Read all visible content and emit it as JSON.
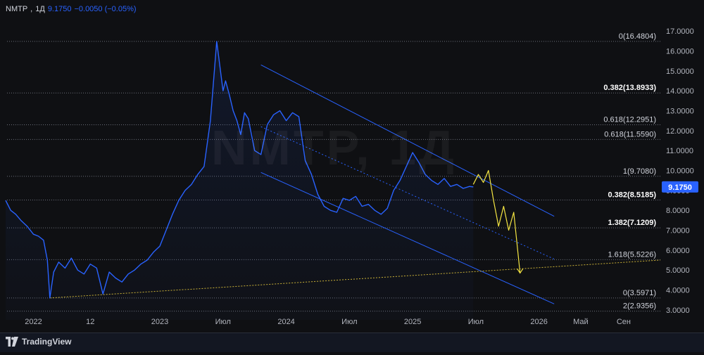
{
  "legend": {
    "symbol": "NMTP",
    "interval": "1Д",
    "price": "9.1750",
    "change": "−0.0050 (−0.05%)"
  },
  "watermark": "NMTP, 1Д",
  "brand": {
    "name": "TradingView",
    "icon": "tradingview-logo-icon"
  },
  "colors": {
    "background": "#0f1013",
    "price_line": "#2962ff",
    "channel": "#2962ff",
    "forecast": "#f5e642",
    "trendline": "#c9b037",
    "price_badge": "#2962ff"
  },
  "chart_data": {
    "type": "line",
    "title": "",
    "xlabel": "",
    "ylabel": "",
    "ylim": [
      2.5,
      17.5
    ],
    "y_ticks": [
      "3.0000",
      "4.0000",
      "5.0000",
      "6.0000",
      "7.0000",
      "8.0000",
      "9.0000",
      "10.0000",
      "11.0000",
      "12.0000",
      "13.0000",
      "14.0000",
      "15.0000",
      "16.0000",
      "17.0000"
    ],
    "x_ticks": [
      "2022",
      "12",
      "2023",
      "Июл",
      "2024",
      "Июл",
      "2025",
      "Июл",
      "2026",
      "Май",
      "Сен"
    ],
    "x_tick_positions": [
      2022.0,
      2022.45,
      2023.0,
      2023.5,
      2024.0,
      2024.5,
      2025.0,
      2025.5,
      2026.0,
      2026.33,
      2026.67
    ],
    "x_range": [
      2021.78,
      2026.96
    ],
    "last_price": 9.175,
    "last_price_label": "9.1750",
    "series": [
      {
        "x": [
          2021.78,
          2021.82,
          2021.86,
          2021.9,
          2021.95,
          2022.0,
          2022.04,
          2022.08,
          2022.11,
          2022.13,
          2022.16,
          2022.2,
          2022.25,
          2022.3,
          2022.35,
          2022.4,
          2022.45,
          2022.5,
          2022.55,
          2022.6,
          2022.65,
          2022.7,
          2022.75,
          2022.8,
          2022.85,
          2022.9,
          2022.95,
          2023.0,
          2023.05,
          2023.1,
          2023.15,
          2023.2,
          2023.25,
          2023.3,
          2023.35,
          2023.4,
          2023.45,
          2023.5,
          2023.52,
          2023.55,
          2023.58,
          2023.61,
          2023.64,
          2023.67,
          2023.7,
          2023.75,
          2023.8,
          2023.85,
          2023.9,
          2023.95,
          2024.0,
          2024.05,
          2024.1,
          2024.15,
          2024.2,
          2024.25,
          2024.3,
          2024.35,
          2024.4,
          2024.45,
          2024.5,
          2024.55,
          2024.6,
          2024.65,
          2024.7,
          2024.75,
          2024.8,
          2024.85,
          2024.9,
          2024.95,
          2025.0,
          2025.05,
          2025.1,
          2025.15,
          2025.2,
          2025.25,
          2025.3,
          2025.35,
          2025.4,
          2025.45,
          2025.48
        ],
        "y": [
          8.5,
          8.0,
          7.8,
          7.5,
          7.2,
          6.8,
          6.7,
          6.5,
          5.5,
          3.6,
          4.9,
          5.4,
          5.1,
          5.6,
          5.0,
          4.8,
          5.3,
          5.1,
          3.8,
          4.9,
          4.6,
          4.4,
          4.8,
          5.0,
          5.3,
          5.5,
          5.9,
          6.2,
          7.0,
          7.8,
          8.5,
          9.0,
          9.3,
          9.8,
          10.2,
          12.5,
          16.48,
          14.0,
          14.5,
          13.8,
          13.0,
          12.5,
          11.8,
          12.9,
          12.6,
          11.0,
          10.8,
          12.3,
          12.8,
          13.0,
          12.5,
          12.9,
          12.7,
          10.5,
          9.8,
          8.8,
          8.2,
          8.0,
          7.9,
          8.6,
          8.5,
          8.7,
          8.2,
          8.3,
          8.0,
          7.8,
          8.1,
          9.0,
          9.5,
          10.2,
          10.9,
          10.4,
          9.8,
          9.5,
          9.3,
          9.6,
          9.2,
          9.3,
          9.1,
          9.2,
          9.175
        ]
      },
      {
        "x": [
          2025.48,
          2025.52,
          2025.56,
          2025.6,
          2025.64,
          2025.68,
          2025.72,
          2025.76,
          2025.8,
          2025.85
        ],
        "y": [
          9.3,
          9.8,
          9.4,
          10.0,
          8.5,
          7.2,
          8.2,
          7.0,
          7.9,
          4.85
        ]
      }
    ],
    "channel": {
      "upper": {
        "x": [
          2023.8,
          2026.12
        ],
        "y": [
          15.3,
          7.7
        ]
      },
      "middle": {
        "x": [
          2023.8,
          2026.12
        ],
        "y": [
          12.2,
          5.55
        ]
      },
      "lower": {
        "x": [
          2023.8,
          2026.12
        ],
        "y": [
          9.9,
          3.3
        ]
      }
    },
    "trendline": {
      "x": [
        2022.13,
        2026.96
      ],
      "y": [
        3.6,
        5.5
      ]
    },
    "fib_levels": [
      {
        "label": "0(16.4804)",
        "value": 16.4804,
        "bold": false
      },
      {
        "label": "0.382(13.8933)",
        "value": 13.8933,
        "bold": true
      },
      {
        "label": "0.618(12.2951)",
        "value": 12.2951,
        "bold": false
      },
      {
        "label": "0.618(11.5590)",
        "value": 11.559,
        "bold": false
      },
      {
        "label": "1(9.7080)",
        "value": 9.708,
        "bold": false
      },
      {
        "label": "0.382(8.5185)",
        "value": 8.5185,
        "bold": true
      },
      {
        "label": "1.382(7.1209)",
        "value": 7.1209,
        "bold": true
      },
      {
        "label": "1.618(5.5226)",
        "value": 5.5226,
        "bold": false
      },
      {
        "label": "0(3.5971)",
        "value": 3.5971,
        "bold": false
      },
      {
        "label": "2(2.9356)",
        "value": 2.9356,
        "bold": false
      }
    ]
  }
}
